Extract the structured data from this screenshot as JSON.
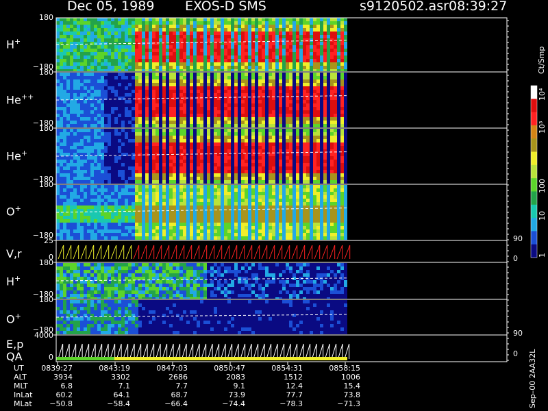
{
  "header": {
    "date": "Dec 05, 1989",
    "instrument": "EXOS-D SMS",
    "filename": "s9120502.asr",
    "time": "08:39:27"
  },
  "colorbar": {
    "unit": "Ct/Smp",
    "labels": [
      "1",
      "10",
      "100",
      "10³",
      "10⁴"
    ],
    "colors": [
      "#0a0a82",
      "#1b4fd6",
      "#22a9e5",
      "#19c8b0",
      "#23a34a",
      "#5cd42a",
      "#b9e33a",
      "#f0ef2a",
      "#a8941c",
      "#d58516",
      "#ff2222",
      "#dd0e0e",
      "#ffffff"
    ]
  },
  "panels": [
    {
      "id": "h-plus",
      "species": "H",
      "charge": "+",
      "ymax": "180",
      "ymin": "−180"
    },
    {
      "id": "he-plus-plus",
      "species": "He",
      "charge": "++",
      "ymax": "180",
      "ymin": "−180"
    },
    {
      "id": "he-plus",
      "species": "He",
      "charge": "+",
      "ymax": "180",
      "ymin": "−180"
    },
    {
      "id": "o-plus",
      "species": "O",
      "charge": "+",
      "ymax": "180",
      "ymin": "−180"
    },
    {
      "id": "vr",
      "species": "V,r",
      "charge": "",
      "ymax": "25",
      "ymin": "0",
      "rmax": "90",
      "rmin": "0"
    },
    {
      "id": "h-plus-2",
      "species": "H",
      "charge": "+",
      "ymax": "180",
      "ymin": "−180"
    },
    {
      "id": "o-plus-2",
      "species": "O",
      "charge": "+",
      "ymax": "180",
      "ymin": "−180"
    },
    {
      "id": "ep-qa",
      "species": "E,p",
      "species2": "QA",
      "charge": "",
      "ymax": "4000",
      "ymin": "0",
      "rmax": "90",
      "rmin": "0"
    }
  ],
  "ephemeris": {
    "rows": [
      {
        "label": "UT",
        "values": [
          "0839:27",
          "0843:19",
          "0847:03",
          "0850:47",
          "0854:31",
          "0858:15"
        ]
      },
      {
        "label": "ALT",
        "values": [
          "3934",
          "3302",
          "2686",
          "2083",
          "1512",
          "1006"
        ]
      },
      {
        "label": "MLT",
        "values": [
          "6.8",
          "7.1",
          "7.7",
          "9.1",
          "12.4",
          "15.4"
        ]
      },
      {
        "label": "InLat",
        "values": [
          "60.2",
          "64.1",
          "68.7",
          "73.9",
          "77.7",
          "73.8"
        ]
      },
      {
        "label": "MLat",
        "values": [
          "−50.8",
          "−58.4",
          "−66.4",
          "−74.4",
          "−78.3",
          "−71.3"
        ]
      }
    ]
  },
  "footer": "Sep–00  2AA32L",
  "chart_data": {
    "type": "heatmap",
    "title": "Dec 05, 1989   EXOS-D SMS",
    "x": [
      "0839:27",
      "0843:19",
      "0847:03",
      "0850:47",
      "0854:31",
      "0858:15"
    ],
    "ylim": [
      -180,
      180
    ],
    "color_scale": "log",
    "colorbar_range": [
      1,
      10000
    ],
    "series": [
      {
        "name": "H+",
        "ylim": [
          -180,
          180
        ]
      },
      {
        "name": "He++",
        "ylim": [
          -180,
          180
        ]
      },
      {
        "name": "He+",
        "ylim": [
          -180,
          180
        ]
      },
      {
        "name": "O+",
        "ylim": [
          -180,
          180
        ]
      },
      {
        "name": "V,r",
        "ylim": [
          0,
          25
        ]
      },
      {
        "name": "H+",
        "ylim": [
          -180,
          180
        ]
      },
      {
        "name": "O+",
        "ylim": [
          -180,
          180
        ]
      },
      {
        "name": "E,p",
        "ylim": [
          0,
          4000
        ]
      }
    ]
  }
}
